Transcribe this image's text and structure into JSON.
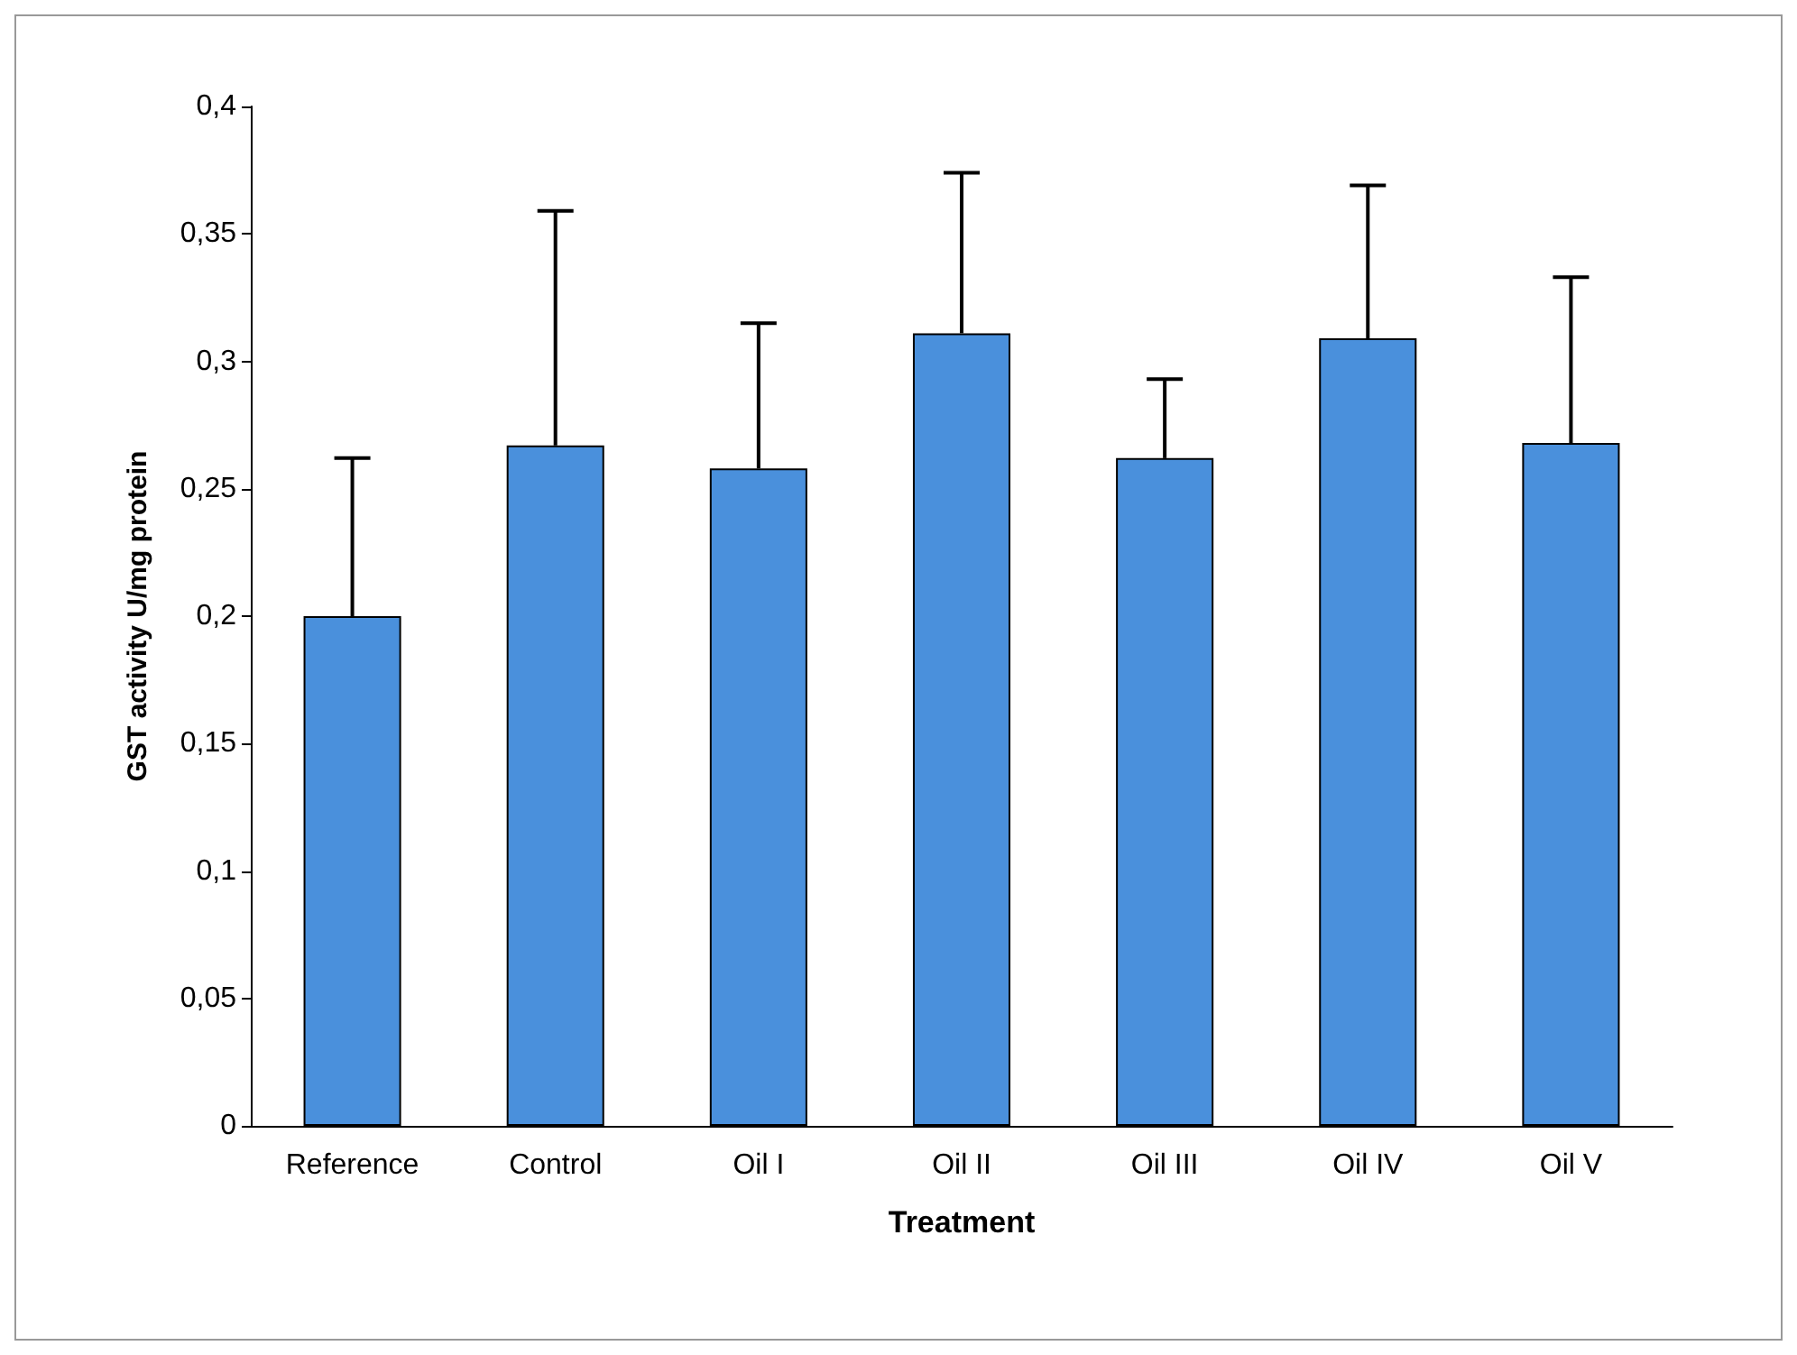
{
  "chart_data": {
    "type": "bar",
    "xlabel": "Treatment",
    "ylabel": "GST activity U/mg protein",
    "categories": [
      "Reference",
      "Control",
      "Oil I",
      "Oil II",
      "Oil III",
      "Oil IV",
      "Oil V"
    ],
    "values": [
      0.2,
      0.267,
      0.258,
      0.311,
      0.262,
      0.309,
      0.268
    ],
    "errors": [
      [
        0.2,
        0.262
      ],
      [
        0.267,
        0.359
      ],
      [
        0.258,
        0.315
      ],
      [
        0.311,
        0.374
      ],
      [
        0.262,
        0.293
      ],
      [
        0.309,
        0.369
      ],
      [
        0.268,
        0.333
      ]
    ],
    "color": "#4a90dc",
    "ylim": [
      0,
      0.4
    ],
    "yticks": [
      0,
      {
        "value": 0.05,
        "label": "0,05"
      },
      {
        "value": 0.1,
        "label": "0,1"
      },
      {
        "value": 0.15,
        "label": "0,15"
      },
      {
        "value": 0.2,
        "label": "0,2"
      },
      {
        "value": 0.25,
        "label": "0,25"
      },
      {
        "value": 0.3,
        "label": "0,3"
      },
      {
        "value": 0.35,
        "label": "0,35"
      },
      {
        "value": 0.4,
        "label": "0,4"
      }
    ],
    "grid": false
  }
}
